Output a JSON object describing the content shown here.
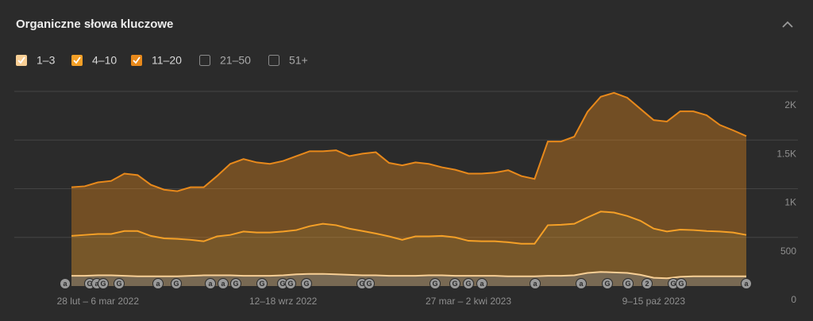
{
  "chart_data": {
    "type": "stacked_area",
    "title": "Organiczne słowa kluczowe",
    "categories": [
      null,
      null,
      "28 lut – 6 mar 2022",
      null,
      null,
      null,
      null,
      null,
      null,
      null,
      null,
      null,
      null,
      null,
      null,
      null,
      "12–18 wrz 2022",
      null,
      null,
      null,
      null,
      null,
      null,
      null,
      null,
      null,
      null,
      null,
      null,
      null,
      "27 mar – 2 kwi 2023",
      null,
      null,
      null,
      null,
      null,
      null,
      null,
      null,
      null,
      null,
      null,
      null,
      null,
      "9–15 paź 2023",
      null,
      null,
      null,
      null,
      null,
      null,
      null
    ],
    "series": [
      {
        "name": "1–3",
        "color": "#f8cf95",
        "values": [
          105,
          105,
          110,
          110,
          105,
          100,
          100,
          100,
          100,
          105,
          110,
          110,
          110,
          105,
          105,
          105,
          110,
          120,
          125,
          125,
          120,
          115,
          110,
          110,
          105,
          105,
          105,
          110,
          110,
          105,
          105,
          105,
          105,
          100,
          100,
          100,
          105,
          105,
          110,
          135,
          145,
          140,
          135,
          115,
          85,
          80,
          95,
          100,
          100,
          100,
          100,
          100
        ]
      },
      {
        "name": "4–10",
        "color": "#f5a027",
        "values": [
          410,
          420,
          425,
          425,
          460,
          465,
          415,
          390,
          385,
          370,
          350,
          400,
          415,
          455,
          445,
          445,
          450,
          455,
          490,
          515,
          505,
          475,
          455,
          430,
          405,
          370,
          405,
          400,
          405,
          395,
          360,
          355,
          355,
          350,
          335,
          335,
          520,
          525,
          530,
          570,
          620,
          615,
          585,
          555,
          505,
          480,
          485,
          475,
          465,
          460,
          450,
          425
        ]
      },
      {
        "name": "11–20",
        "color": "#e8891b",
        "values": [
          500,
          500,
          530,
          545,
          590,
          575,
          525,
          500,
          490,
          540,
          555,
          620,
          730,
          745,
          720,
          705,
          725,
          760,
          770,
          745,
          770,
          745,
          795,
          835,
          755,
          765,
          760,
          745,
          705,
          695,
          690,
          695,
          705,
          740,
          695,
          665,
          860,
          855,
          895,
          1085,
          1180,
          1230,
          1215,
          1150,
          1115,
          1130,
          1215,
          1220,
          1190,
          1095,
          1050,
          1015
        ]
      }
    ],
    "hidden_series": [
      "21–50",
      "51+"
    ],
    "ylim": [
      0,
      2000
    ],
    "yticks": [
      0,
      500,
      {
        "value": 1000,
        "label": "1K"
      },
      {
        "value": 1500,
        "label": "1.5K"
      },
      {
        "value": 2000,
        "label": "2K"
      }
    ],
    "grid": true,
    "annotations": [
      "a",
      "G",
      "a",
      "G",
      "G",
      "a",
      "G",
      "a",
      "a",
      "G",
      "G",
      "G",
      "G",
      "G",
      "G",
      "G",
      "G",
      "G",
      "G",
      "a",
      "a",
      "a",
      "G",
      "G",
      "2",
      "G",
      "G",
      "a"
    ]
  }
}
